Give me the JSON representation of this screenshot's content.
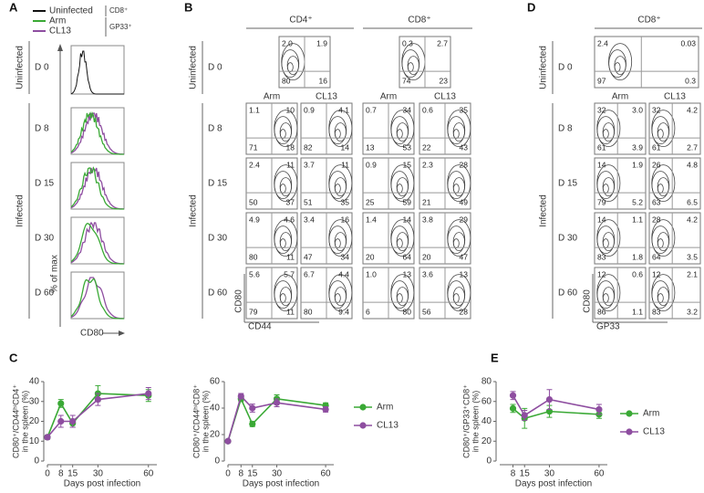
{
  "panel_labels": [
    "A",
    "B",
    "C",
    "D",
    "E"
  ],
  "panels": {
    "A": {
      "legend": [
        {
          "name": "Uninfected",
          "color": "#111111"
        },
        {
          "name": "Arm",
          "color": "#3aa935"
        },
        {
          "name": "CL13",
          "color": "#8e4ea0"
        }
      ],
      "brackets": [
        "CD8⁺",
        "GP33⁺"
      ],
      "groups": [
        "Uninfected",
        "Infected"
      ],
      "rows": [
        "D 0",
        "D 8",
        "D 15",
        "D 30",
        "D 60"
      ],
      "ylabel": "% of max",
      "xlabel": "CD80"
    },
    "B": {
      "columns": [
        "CD4⁺",
        "CD8⁺"
      ],
      "subcolumns": [
        "Arm",
        "CL13"
      ],
      "groups": [
        "Uninfected",
        "Infected"
      ],
      "rows": [
        "D 0",
        "D 8",
        "D 15",
        "D 30",
        "D 60"
      ],
      "ylabel": "CD80",
      "xlabel": "CD44",
      "d0": [
        [
          "2.0",
          "1.9",
          "80",
          "16"
        ],
        [
          "0.3",
          "2.7",
          "74",
          "23"
        ]
      ],
      "plots": [
        [
          [
            "1.1",
            "10",
            "71",
            "18"
          ],
          [
            "0.9",
            "4.1",
            "82",
            "14"
          ],
          [
            "0.7",
            "34",
            "13",
            "53"
          ],
          [
            "0.6",
            "35",
            "22",
            "43"
          ]
        ],
        [
          [
            "2.4",
            "11",
            "50",
            "37"
          ],
          [
            "3.7",
            "11",
            "51",
            "35"
          ],
          [
            "0.9",
            "15",
            "25",
            "59"
          ],
          [
            "2.3",
            "28",
            "21",
            "49"
          ]
        ],
        [
          [
            "4.9",
            "4.6",
            "80",
            "11"
          ],
          [
            "3.4",
            "16",
            "47",
            "34"
          ],
          [
            "1.4",
            "14",
            "20",
            "64"
          ],
          [
            "3.8",
            "29",
            "20",
            "47"
          ]
        ],
        [
          [
            "5.6",
            "5.7",
            "79",
            "11"
          ],
          [
            "6.7",
            "4.4",
            "80",
            "9.4"
          ],
          [
            "1.0",
            "13",
            "6",
            "80"
          ],
          [
            "3.6",
            "13",
            "56",
            "28"
          ]
        ]
      ]
    },
    "D": {
      "columns": [
        "CD8⁺"
      ],
      "subcolumns": [
        "Arm",
        "CL13"
      ],
      "groups": [
        "Uninfected",
        "Infected"
      ],
      "rows": [
        "D 0",
        "D 8",
        "D 15",
        "D 30",
        "D 60"
      ],
      "ylabel": "CD80",
      "xlabel": "GP33",
      "d0": [
        [
          "2.4",
          "0.03",
          "97",
          "0.3"
        ]
      ],
      "plots": [
        [
          [
            "32",
            "3.0",
            "61",
            "3.9"
          ],
          [
            "32",
            "4.2",
            "61",
            "2.7"
          ]
        ],
        [
          [
            "14",
            "1.9",
            "79",
            "5.2"
          ],
          [
            "26",
            "4.8",
            "63",
            "6.5"
          ]
        ],
        [
          [
            "14",
            "1.1",
            "83",
            "1.8"
          ],
          [
            "28",
            "4.2",
            "64",
            "3.5"
          ]
        ],
        [
          [
            "12",
            "0.6",
            "86",
            "1.1"
          ],
          [
            "12",
            "2.1",
            "83",
            "3.2"
          ]
        ]
      ]
    }
  },
  "chart_data": [
    {
      "type": "line",
      "ylabel": [
        "CD80⁺/CD44ʰⁱCD4⁺",
        "in the spleen (%)"
      ],
      "xlabel": "Days post infection",
      "x": [
        0,
        8,
        15,
        30,
        60
      ],
      "xlim": [
        0,
        65
      ],
      "xticks": [
        0,
        8,
        15,
        30,
        60
      ],
      "ylim": [
        0,
        40
      ],
      "yticks": [
        0,
        10,
        20,
        30,
        40
      ],
      "legend": false,
      "series": [
        {
          "name": "Arm",
          "color": "#3aa935",
          "values": [
            12,
            29,
            19,
            34,
            33
          ],
          "errors": [
            1,
            2,
            2,
            4,
            3
          ]
        },
        {
          "name": "CL13",
          "color": "#8e4ea0",
          "values": [
            12,
            20,
            20,
            31,
            34
          ],
          "errors": [
            1,
            3,
            3,
            3,
            3
          ]
        }
      ]
    },
    {
      "type": "line",
      "ylabel": [
        "CD80⁺/CD44ʰⁱCD8⁺",
        "in the spleen (%)"
      ],
      "xlabel": "Days post infection",
      "x": [
        0,
        8,
        15,
        30,
        60
      ],
      "xlim": [
        0,
        65
      ],
      "xticks": [
        0,
        8,
        15,
        30,
        60
      ],
      "ylim": [
        0,
        60
      ],
      "yticks": [
        0,
        20,
        40,
        60
      ],
      "legend": true,
      "series": [
        {
          "name": "Arm",
          "color": "#3aa935",
          "values": [
            15,
            47,
            28,
            47,
            42
          ],
          "errors": [
            1,
            2,
            2,
            3,
            2
          ]
        },
        {
          "name": "CL13",
          "color": "#8e4ea0",
          "values": [
            15,
            49,
            40,
            44,
            39
          ],
          "errors": [
            1,
            2,
            3,
            3,
            2
          ]
        }
      ]
    },
    {
      "type": "line",
      "ylabel": [
        "CD80⁺/GP33⁺CD8⁺",
        "in the spleen (%)"
      ],
      "xlabel": "Days post infection",
      "x": [
        8,
        15,
        30,
        60
      ],
      "xlim": [
        0,
        65
      ],
      "xticks": [
        8,
        15,
        30,
        60
      ],
      "ylim": [
        0,
        80
      ],
      "yticks": [
        0,
        20,
        40,
        60,
        80
      ],
      "legend": true,
      "series": [
        {
          "name": "Arm",
          "color": "#3aa935",
          "values": [
            53,
            43,
            50,
            47
          ],
          "errors": [
            4,
            10,
            6,
            4
          ]
        },
        {
          "name": "CL13",
          "color": "#8e4ea0",
          "values": [
            66,
            46,
            62,
            52
          ],
          "errors": [
            4,
            5,
            10,
            5
          ]
        }
      ]
    }
  ]
}
